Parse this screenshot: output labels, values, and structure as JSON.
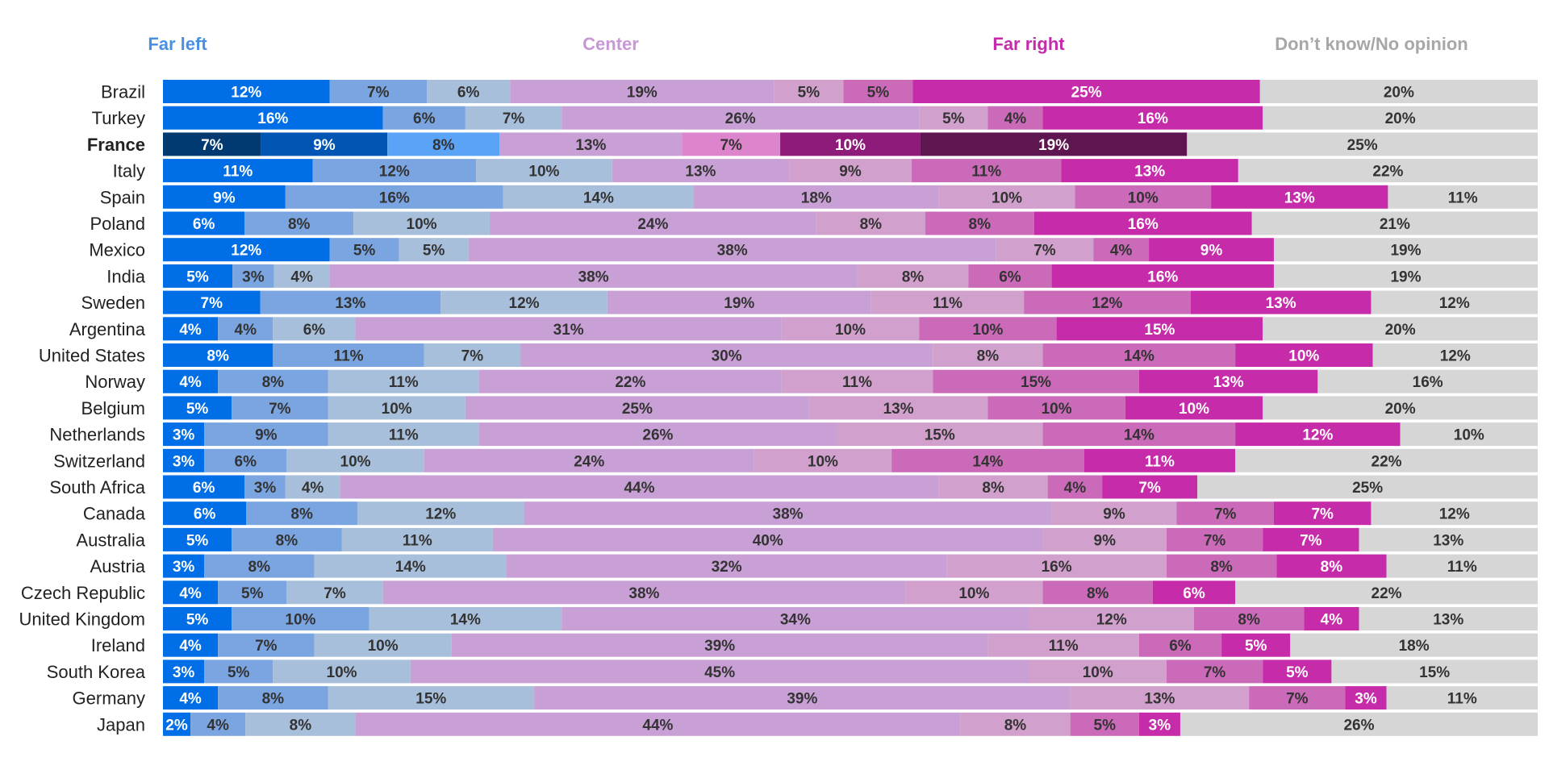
{
  "chart_data": {
    "type": "bar",
    "orientation": "horizontal",
    "stacked": true,
    "grid": false,
    "legend_position": "top",
    "highlight_category": "France",
    "header_labels": [
      {
        "text": "Far left",
        "color": "#4a90e2"
      },
      {
        "text": "Center",
        "color": "#c897d6"
      },
      {
        "text": "Far right",
        "color": "#c42bab"
      },
      {
        "text": "Don’t know/No opinion",
        "color": "#a7a7a7"
      }
    ],
    "segment_colors": [
      "#006ee6",
      "#7aa5e0",
      "#a8bfdb",
      "#c8a0d5",
      "#d1a0cc",
      "#ca6ab8",
      "#c62ca9",
      "#d6d6d6"
    ],
    "highlight_colors": [
      "#003a70",
      "#0055b3",
      "#5aa3f7",
      "#c8a0d5",
      "#dd85cc",
      "#8e1a7a",
      "#5e1650",
      "#d6d6d6"
    ],
    "categories": [
      "Brazil",
      "Turkey",
      "France",
      "Italy",
      "Spain",
      "Poland",
      "Mexico",
      "India",
      "Sweden",
      "Argentina",
      "United States",
      "Norway",
      "Belgium",
      "Netherlands",
      "Switzerland",
      "South Africa",
      "Canada",
      "Australia",
      "Austria",
      "Czech Republic",
      "United Kingdom",
      "Ireland",
      "South Korea",
      "Germany",
      "Japan"
    ],
    "values": [
      [
        12,
        7,
        6,
        19,
        5,
        5,
        25,
        20
      ],
      [
        16,
        6,
        7,
        26,
        5,
        4,
        16,
        20
      ],
      [
        7,
        9,
        8,
        13,
        7,
        10,
        19,
        25
      ],
      [
        11,
        12,
        10,
        13,
        9,
        11,
        13,
        22
      ],
      [
        9,
        16,
        14,
        18,
        10,
        10,
        13,
        11
      ],
      [
        6,
        8,
        10,
        24,
        8,
        8,
        16,
        21
      ],
      [
        12,
        5,
        5,
        38,
        7,
        4,
        9,
        19
      ],
      [
        5,
        3,
        4,
        38,
        8,
        6,
        16,
        19
      ],
      [
        7,
        13,
        12,
        19,
        11,
        12,
        13,
        12
      ],
      [
        4,
        4,
        6,
        31,
        10,
        10,
        15,
        20
      ],
      [
        8,
        11,
        7,
        30,
        8,
        14,
        10,
        12
      ],
      [
        4,
        8,
        11,
        22,
        11,
        15,
        13,
        16
      ],
      [
        5,
        7,
        10,
        25,
        13,
        10,
        10,
        20
      ],
      [
        3,
        9,
        11,
        26,
        15,
        14,
        12,
        10
      ],
      [
        3,
        6,
        10,
        24,
        10,
        14,
        11,
        22
      ],
      [
        6,
        3,
        4,
        44,
        8,
        4,
        7,
        25
      ],
      [
        6,
        8,
        12,
        38,
        9,
        7,
        7,
        12
      ],
      [
        5,
        8,
        11,
        40,
        9,
        7,
        7,
        13
      ],
      [
        3,
        8,
        14,
        32,
        16,
        8,
        8,
        11
      ],
      [
        4,
        5,
        7,
        38,
        10,
        8,
        6,
        22
      ],
      [
        5,
        10,
        14,
        34,
        12,
        8,
        4,
        13
      ],
      [
        4,
        7,
        10,
        39,
        11,
        6,
        5,
        18
      ],
      [
        3,
        5,
        10,
        45,
        10,
        7,
        5,
        15
      ],
      [
        4,
        8,
        15,
        39,
        13,
        7,
        3,
        11
      ],
      [
        2,
        4,
        8,
        44,
        8,
        5,
        3,
        26
      ]
    ],
    "value_suffix": "%"
  }
}
